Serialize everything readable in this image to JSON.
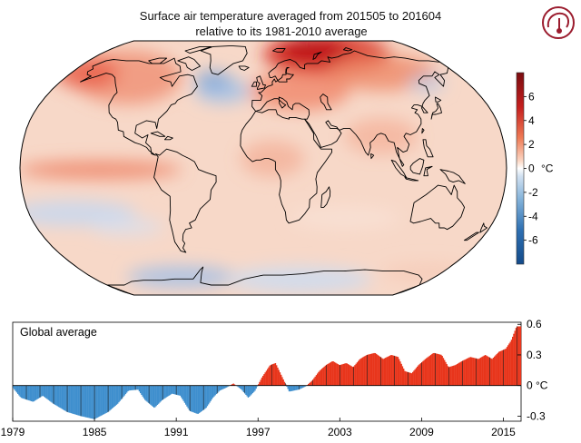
{
  "title_line1": "Surface air temperature averaged from 201505 to 201604",
  "title_line2": "relative to its 1981-2010 average",
  "logo": {
    "icon": "thermometer-head-icon",
    "color": "#9b1c2e"
  },
  "map": {
    "projection": "robinson",
    "colors": {
      "ocean": "#f7d8c8",
      "outline": "#000000"
    }
  },
  "colorbar": {
    "ticks": [
      6,
      4,
      2,
      0,
      -2,
      -4,
      -6
    ],
    "tick_labels": [
      "6",
      "4",
      "2",
      "0",
      "-2",
      "-4",
      "-6"
    ],
    "unit": "°C",
    "range": [
      -8,
      8
    ],
    "colors": {
      "cold": "#134a8a",
      "neutral": "#ffffff",
      "warm": "#7a0c10"
    }
  },
  "chart_data": {
    "type": "bar",
    "title": "Global average",
    "x_ticks": [
      "1979",
      "1985",
      "1991",
      "1997",
      "2003",
      "2009",
      "2015"
    ],
    "y_ticks": [
      0.6,
      0.3,
      0,
      -0.3
    ],
    "y_tick_labels": [
      "0.6",
      "0.3",
      "0 °C",
      "-0.3"
    ],
    "ylim": [
      -0.35,
      0.62
    ],
    "xlim": [
      1979,
      2016.3
    ],
    "colors": {
      "positive": "#e8351b",
      "negative": "#3f8fce"
    },
    "anchor_points": [
      [
        1979.0,
        -0.02
      ],
      [
        1979.6,
        -0.12
      ],
      [
        1980.5,
        -0.16
      ],
      [
        1981.2,
        -0.1
      ],
      [
        1982.0,
        -0.18
      ],
      [
        1983.0,
        -0.26
      ],
      [
        1984.0,
        -0.3
      ],
      [
        1985.0,
        -0.33
      ],
      [
        1986.0,
        -0.26
      ],
      [
        1986.7,
        -0.18
      ],
      [
        1987.5,
        -0.05
      ],
      [
        1988.2,
        -0.04
      ],
      [
        1988.7,
        -0.14
      ],
      [
        1989.4,
        -0.22
      ],
      [
        1990.0,
        -0.14
      ],
      [
        1990.7,
        -0.08
      ],
      [
        1991.3,
        -0.1
      ],
      [
        1992.0,
        -0.25
      ],
      [
        1992.6,
        -0.28
      ],
      [
        1993.2,
        -0.22
      ],
      [
        1993.7,
        -0.12
      ],
      [
        1994.2,
        -0.05
      ],
      [
        1994.7,
        -0.02
      ],
      [
        1995.2,
        0.02
      ],
      [
        1995.8,
        -0.04
      ],
      [
        1996.3,
        -0.12
      ],
      [
        1996.8,
        -0.05
      ],
      [
        1997.3,
        0.08
      ],
      [
        1997.9,
        0.2
      ],
      [
        1998.3,
        0.22
      ],
      [
        1998.8,
        0.08
      ],
      [
        1999.3,
        -0.06
      ],
      [
        2000.0,
        -0.04
      ],
      [
        2000.5,
        -0.01
      ],
      [
        2001.0,
        0.05
      ],
      [
        2001.5,
        0.14
      ],
      [
        2002.0,
        0.2
      ],
      [
        2002.5,
        0.24
      ],
      [
        2003.0,
        0.2
      ],
      [
        2003.5,
        0.22
      ],
      [
        2004.0,
        0.18
      ],
      [
        2004.5,
        0.26
      ],
      [
        2005.0,
        0.3
      ],
      [
        2005.6,
        0.32
      ],
      [
        2006.2,
        0.26
      ],
      [
        2006.8,
        0.3
      ],
      [
        2007.3,
        0.28
      ],
      [
        2007.8,
        0.14
      ],
      [
        2008.3,
        0.12
      ],
      [
        2008.8,
        0.2
      ],
      [
        2009.3,
        0.26
      ],
      [
        2009.9,
        0.32
      ],
      [
        2010.5,
        0.3
      ],
      [
        2011.0,
        0.18
      ],
      [
        2011.5,
        0.2
      ],
      [
        2012.0,
        0.24
      ],
      [
        2012.6,
        0.28
      ],
      [
        2013.2,
        0.26
      ],
      [
        2013.7,
        0.3
      ],
      [
        2014.2,
        0.26
      ],
      [
        2014.7,
        0.33
      ],
      [
        2015.2,
        0.36
      ],
      [
        2015.6,
        0.44
      ],
      [
        2016.0,
        0.58
      ],
      [
        2016.3,
        0.58
      ]
    ]
  }
}
